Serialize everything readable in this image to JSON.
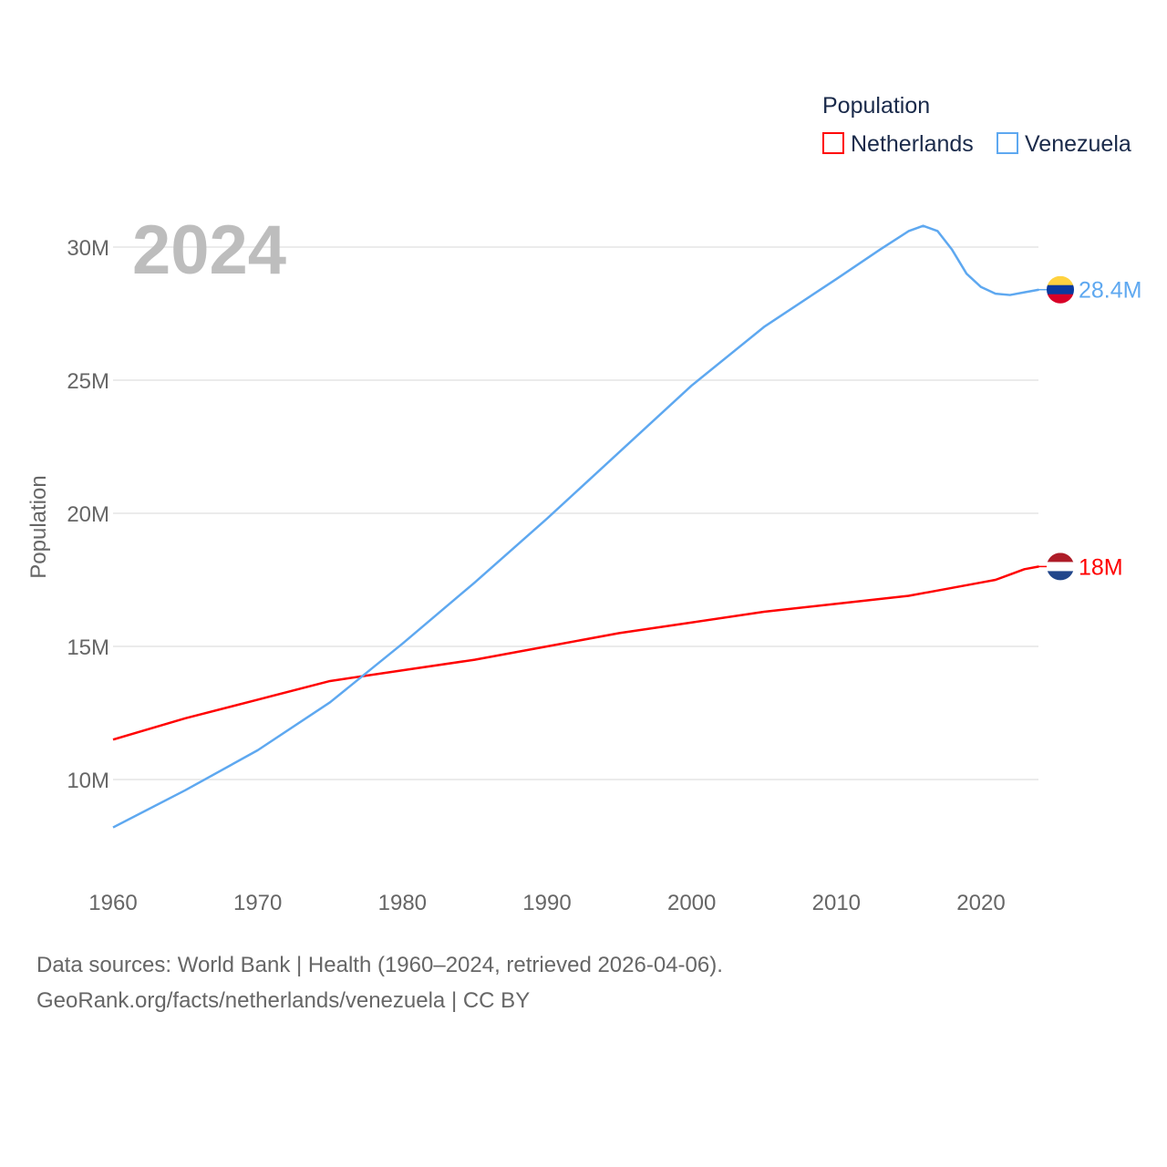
{
  "chart_data": {
    "type": "line",
    "title": "Population",
    "year_label": "2024",
    "ylabel": "Population",
    "xlabel": "",
    "xlim": [
      1960,
      2024
    ],
    "ylim": [
      8,
      32
    ],
    "x_ticks": [
      1960,
      1970,
      1980,
      1990,
      2000,
      2010,
      2020
    ],
    "x_tick_labels": [
      "1960",
      "1970",
      "1980",
      "1990",
      "2000",
      "2010",
      "2020"
    ],
    "y_ticks": [
      10,
      15,
      20,
      25,
      30
    ],
    "y_tick_labels": [
      "10M",
      "15M",
      "20M",
      "25M",
      "30M"
    ],
    "grid": true,
    "legend_placement": "top-right",
    "series": [
      {
        "name": "Netherlands",
        "color": "#ff0000",
        "end_label": "18M",
        "flag": "netherlands-flag",
        "x": [
          1960,
          1965,
          1970,
          1975,
          1980,
          1985,
          1990,
          1995,
          2000,
          2005,
          2010,
          2015,
          2020,
          2021,
          2022,
          2023,
          2024
        ],
        "values": [
          11.5,
          12.3,
          13.0,
          13.7,
          14.1,
          14.5,
          15.0,
          15.5,
          15.9,
          16.3,
          16.6,
          16.9,
          17.4,
          17.5,
          17.7,
          17.9,
          18.0
        ]
      },
      {
        "name": "Venezuela",
        "color": "#5ea8f0",
        "end_label": "28.4M",
        "flag": "venezuela-flag",
        "x": [
          1960,
          1965,
          1970,
          1975,
          1980,
          1985,
          1990,
          1995,
          2000,
          2005,
          2010,
          2013,
          2015,
          2016,
          2017,
          2018,
          2019,
          2020,
          2021,
          2022,
          2023,
          2024
        ],
        "values": [
          8.2,
          9.6,
          11.1,
          12.9,
          15.1,
          17.4,
          19.8,
          22.3,
          24.8,
          27.0,
          28.8,
          29.9,
          30.6,
          30.8,
          30.6,
          29.9,
          29.0,
          28.5,
          28.25,
          28.2,
          28.3,
          28.4
        ]
      }
    ]
  },
  "footer": {
    "line1": "Data sources: World Bank | Health (1960–2024, retrieved 2026-04-06).",
    "line2": "GeoRank.org/facts/netherlands/venezuela | CC BY"
  }
}
